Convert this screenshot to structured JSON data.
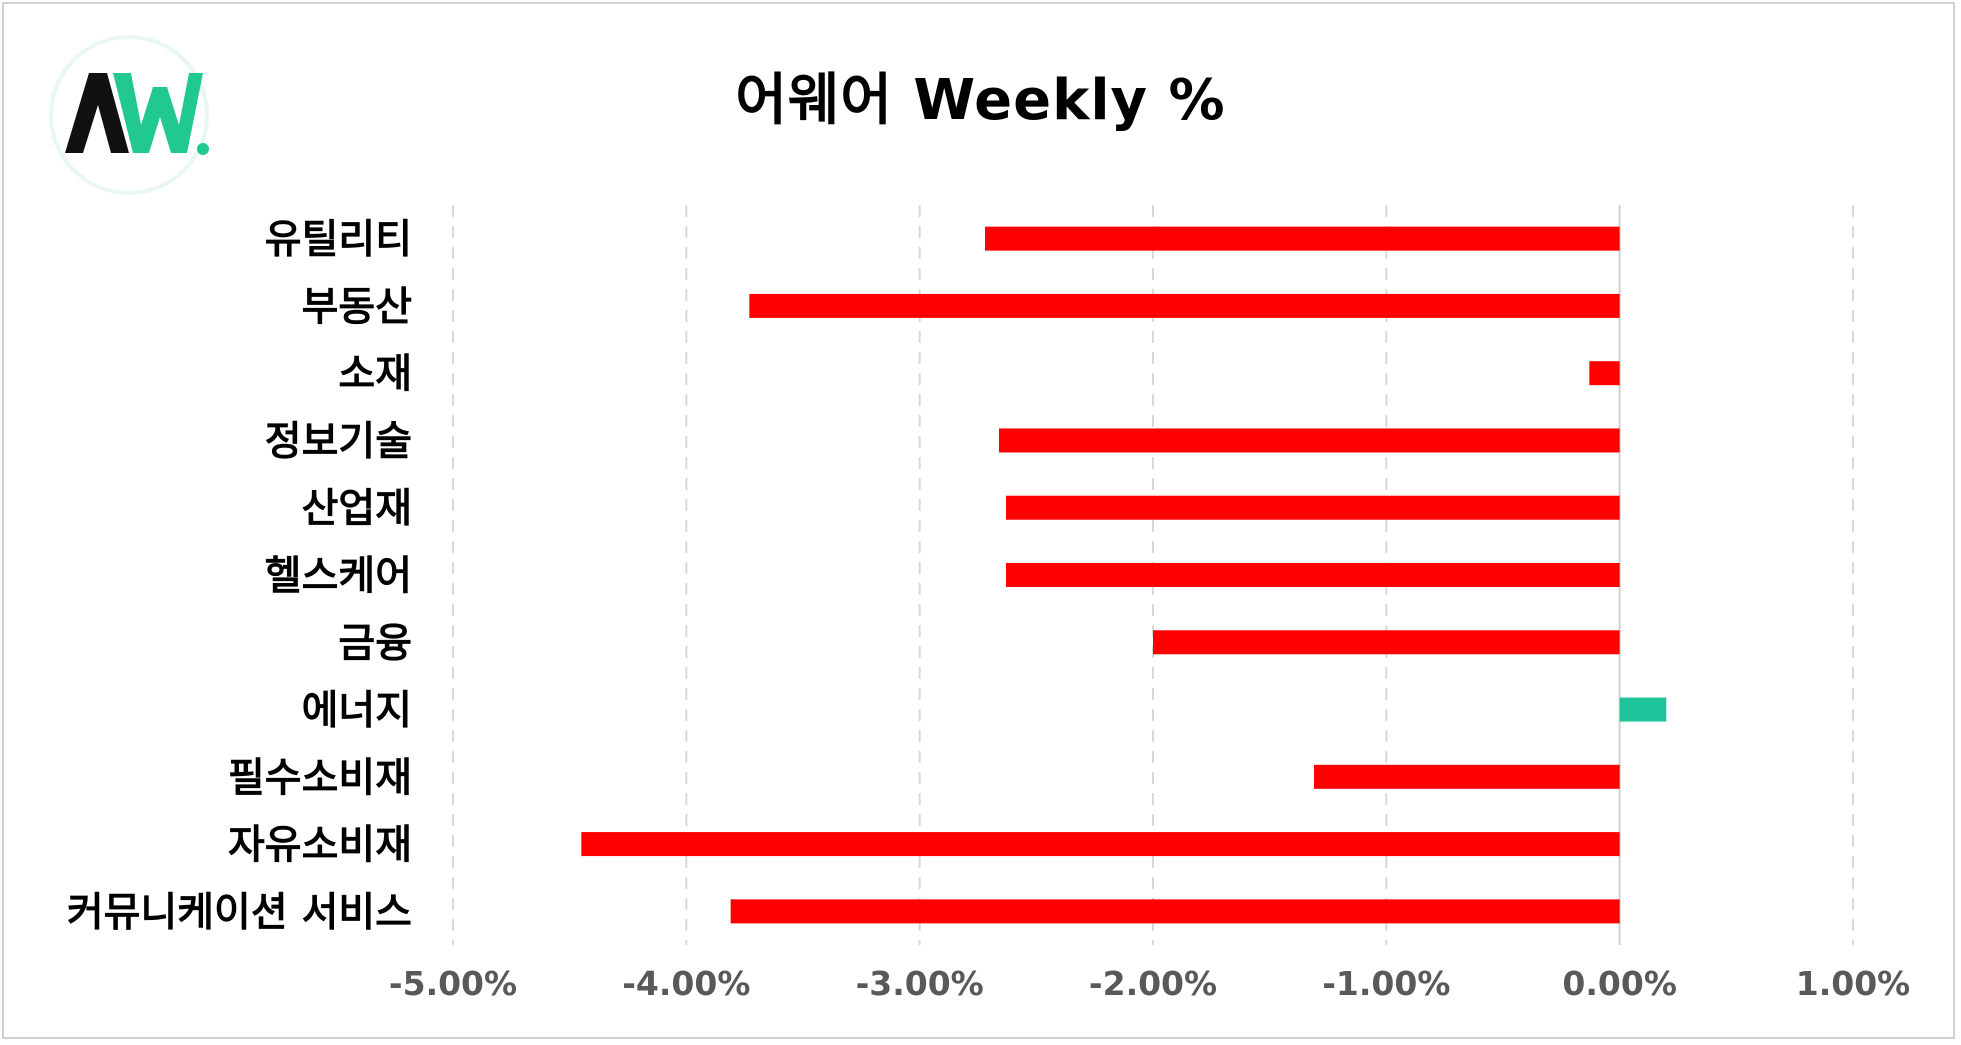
{
  "title": "어웨어 Weekly %",
  "logo": {
    "text": "AW.",
    "colors": {
      "dark": "#111111",
      "accent": "#21c98f",
      "ring": "#e8f8f1"
    }
  },
  "colors": {
    "negative": "#ff0000",
    "positive": "#1fc49a",
    "grid": "#d9d9d9",
    "zero_line": "#d0d0d0"
  },
  "chart_data": {
    "type": "bar",
    "orientation": "horizontal",
    "title": "어웨어 Weekly %",
    "categories": [
      "유틸리티",
      "부동산",
      "소재",
      "정보기술",
      "산업재",
      "헬스케어",
      "금융",
      "에너지",
      "필수소비재",
      "자유소비재",
      "커뮤니케이션 서비스"
    ],
    "values": [
      -2.72,
      -3.73,
      -0.13,
      -2.66,
      -2.63,
      -2.63,
      -2.0,
      0.2,
      -1.31,
      -4.45,
      -3.81
    ],
    "xlim": [
      -5.0,
      1.0
    ],
    "xticks": [
      -5,
      -4,
      -3,
      -2,
      -1,
      0,
      1
    ],
    "xtick_labels": [
      "-5.00%",
      "-4.00%",
      "-3.00%",
      "-2.00%",
      "-1.00%",
      "0.00%",
      "1.00%"
    ],
    "grid": "vertical dashed",
    "legend": "none"
  }
}
